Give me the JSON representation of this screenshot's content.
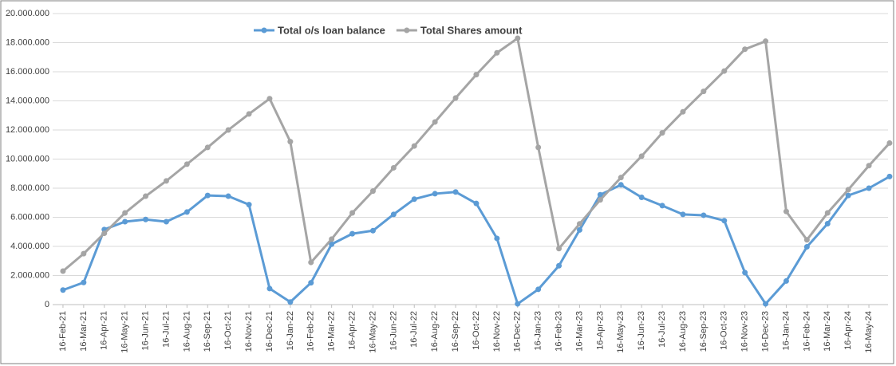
{
  "chart_data": {
    "type": "line",
    "categories": [
      "16-Feb-21",
      "16-Mar-21",
      "16-Apr-21",
      "16-May-21",
      "16-Jun-21",
      "16-Jul-21",
      "16-Aug-21",
      "16-Sep-21",
      "16-Oct-21",
      "16-Nov-21",
      "16-Dec-21",
      "16-Jan-22",
      "16-Feb-22",
      "16-Mar-22",
      "16-Apr-22",
      "16-May-22",
      "16-Jun-22",
      "16-Jul-22",
      "16-Aug-22",
      "16-Sep-22",
      "16-Oct-22",
      "16-Nov-22",
      "16-Dec-22",
      "16-Jan-23",
      "16-Feb-23",
      "16-Mar-23",
      "16-Apr-23",
      "16-May-23",
      "16-Jun-23",
      "16-Jul-23",
      "16-Aug-23",
      "16-Sep-23",
      "16-Oct-23",
      "16-Nov-23",
      "16-Dec-23",
      "16-Jan-24",
      "16-Feb-24",
      "16-Mar-24",
      "16-Apr-24",
      "16-May-24",
      null
    ],
    "series": [
      {
        "name": "Total o/s loan balance",
        "color": "#5b9bd5",
        "values": [
          1000000,
          1520000,
          5160000,
          5700000,
          5850000,
          5700000,
          6360000,
          7500000,
          7450000,
          6870000,
          1100000,
          180000,
          1500000,
          4150000,
          4870000,
          5080000,
          6200000,
          7250000,
          7620000,
          7740000,
          6950000,
          4550000,
          50000,
          1050000,
          2670000,
          5130000,
          7550000,
          8230000,
          7370000,
          6800000,
          6200000,
          6140000,
          5770000,
          2200000,
          50000,
          1620000,
          3970000,
          5560000,
          7500000,
          8000000,
          8800000
        ]
      },
      {
        "name": "Total Shares amount",
        "color": "#a5a5a5",
        "values": [
          2300000,
          3500000,
          4900000,
          6300000,
          7450000,
          8500000,
          9650000,
          10800000,
          12000000,
          13100000,
          14150000,
          11200000,
          2900000,
          4500000,
          6300000,
          7800000,
          9400000,
          10900000,
          12550000,
          14200000,
          15800000,
          17300000,
          18300000,
          10800000,
          3850000,
          5550000,
          7200000,
          8730000,
          10200000,
          11800000,
          13250000,
          14650000,
          16050000,
          17550000,
          18100000,
          6400000,
          4450000,
          6300000,
          7900000,
          9550000,
          11100000
        ]
      }
    ],
    "ylim": [
      0,
      20000000
    ],
    "yticks": [
      0,
      {
        "value": 2000000,
        "label": "2.000.000"
      },
      {
        "value": 4000000,
        "label": "4.000.000"
      },
      {
        "value": 6000000,
        "label": "6.000.000"
      },
      {
        "value": 8000000,
        "label": "8.000.000"
      },
      {
        "value": 10000000,
        "label": "10.000.000"
      },
      {
        "value": 12000000,
        "label": "12.000.000"
      },
      {
        "value": 14000000,
        "label": "14.000.000"
      },
      {
        "value": 16000000,
        "label": "16.000.000"
      },
      {
        "value": 18000000,
        "label": "18.000.000"
      },
      {
        "value": 20000000,
        "label": "20.000.000"
      }
    ],
    "grid": true,
    "legend": "top"
  }
}
